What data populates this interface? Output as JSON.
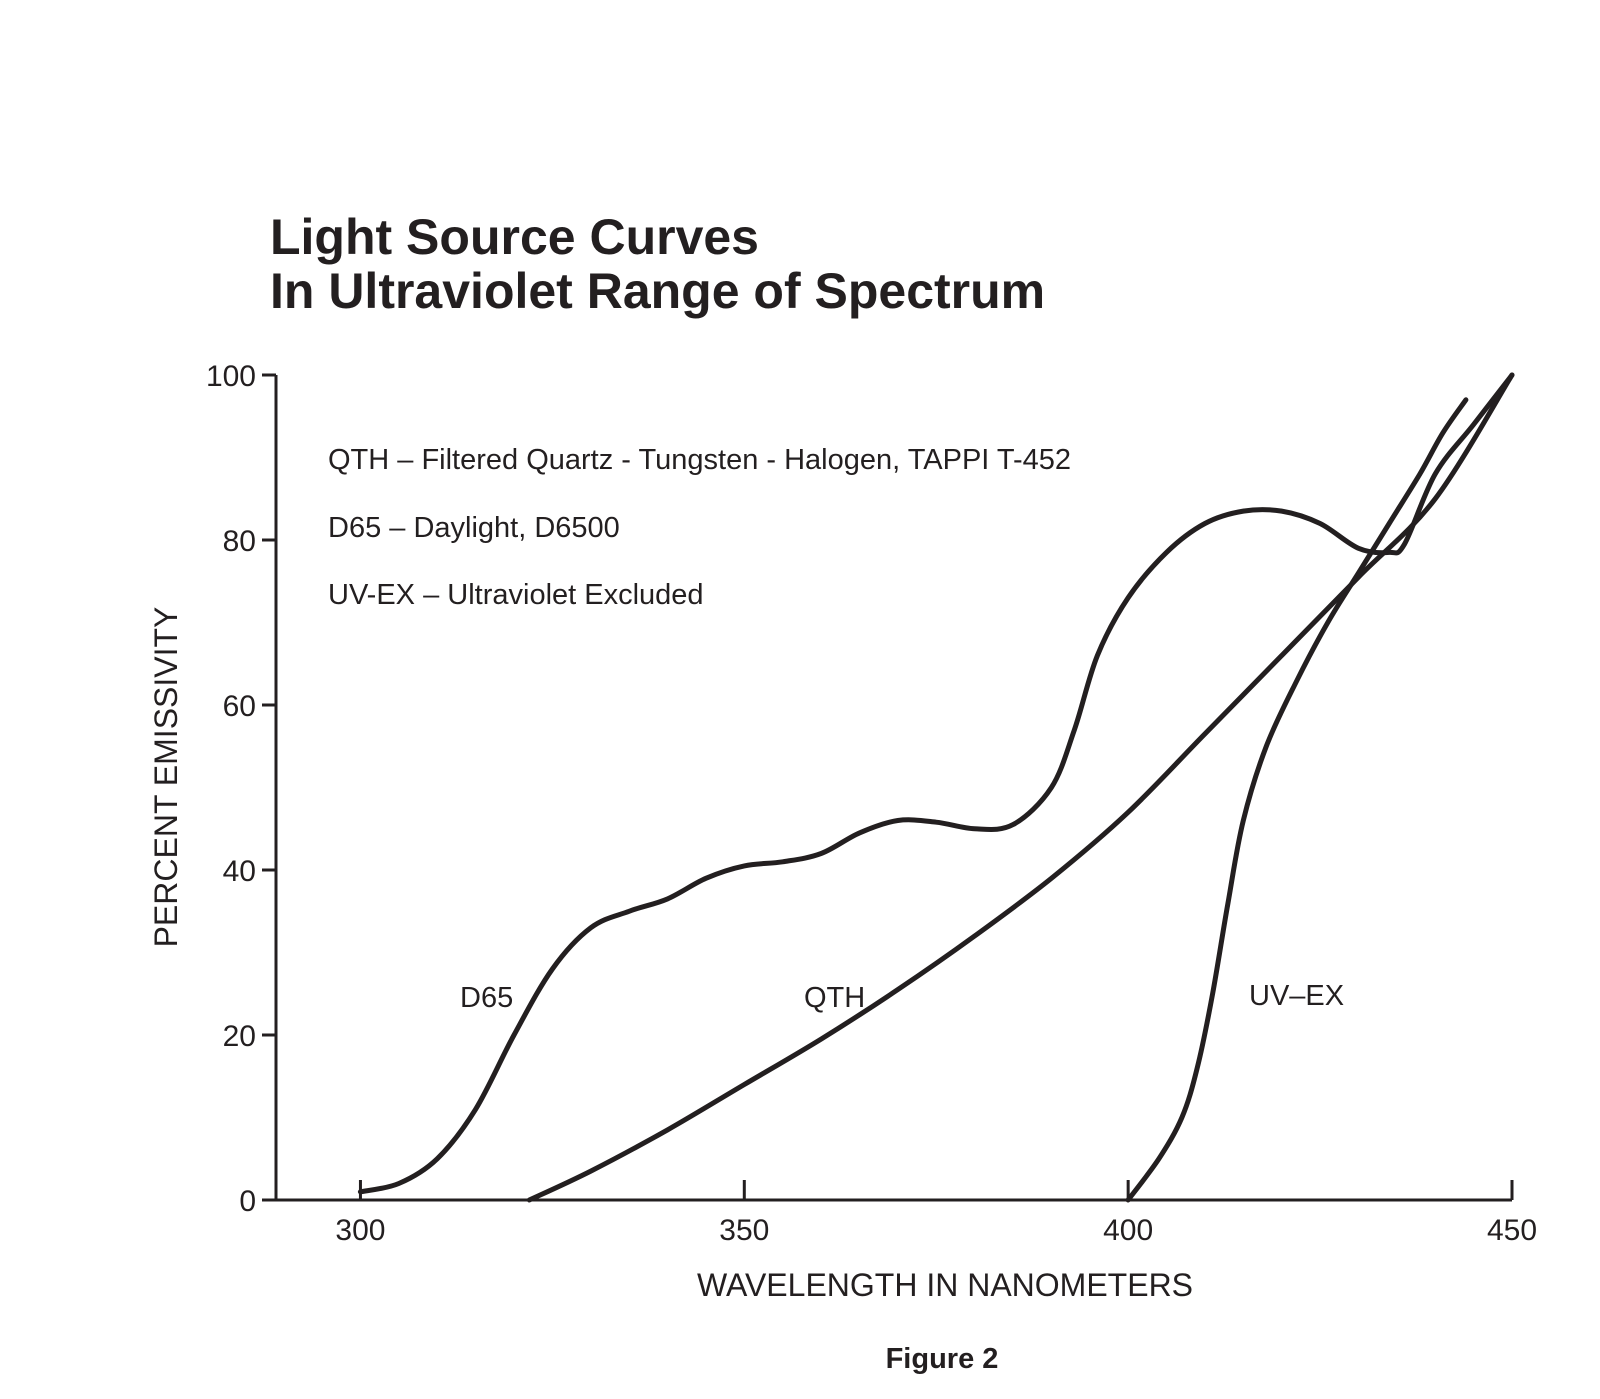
{
  "chart_data": {
    "type": "line",
    "title": "Light Source Curves",
    "subtitle": "In Ultraviolet Range of Spectrum",
    "xlabel": "WAVELENGTH IN NANOMETERS",
    "ylabel": "PERCENT EMISSIVITY",
    "xlim": [
      289,
      450
    ],
    "ylim": [
      0,
      100
    ],
    "x_ticks": [
      300,
      350,
      400,
      450
    ],
    "y_ticks": [
      0,
      20,
      40,
      60,
      80,
      100
    ],
    "grid": false,
    "legend": [
      "QTH – Filtered Quartz - Tungsten - Halogen, TAPPI T-452",
      "D65 – Daylight, D6500",
      "UV-EX – Ultraviolet Excluded"
    ],
    "legend_position": "top-left",
    "series": [
      {
        "name": "D65",
        "label": "D65",
        "x": [
          300,
          305,
          310,
          315,
          320,
          325,
          330,
          335,
          340,
          345,
          350,
          355,
          360,
          365,
          370,
          375,
          380,
          385,
          390,
          393,
          396,
          400,
          405,
          410,
          415,
          420,
          425,
          430,
          434,
          436,
          440,
          445,
          450
        ],
        "y": [
          1,
          2,
          5,
          11,
          20,
          28,
          33,
          35,
          36.5,
          39,
          40.5,
          41,
          42,
          44.5,
          46,
          45.8,
          45,
          45.5,
          50,
          57,
          66,
          73,
          78.5,
          82,
          83.5,
          83.5,
          82,
          79,
          78.5,
          79.5,
          88,
          94,
          100
        ]
      },
      {
        "name": "QTH",
        "label": "QTH",
        "x": [
          322,
          330,
          340,
          350,
          360,
          370,
          380,
          390,
          400,
          410,
          420,
          430,
          440,
          450
        ],
        "y": [
          0,
          3.5,
          8.5,
          14,
          19.5,
          25.5,
          32,
          39,
          47,
          56.5,
          66,
          75.5,
          85,
          100
        ]
      },
      {
        "name": "UV-EX",
        "label": "UV–EX",
        "x": [
          400,
          404,
          407,
          409,
          411,
          413,
          415,
          418,
          422,
          426,
          430,
          434,
          438,
          441,
          444
        ],
        "y": [
          0,
          5,
          10,
          16,
          25,
          36,
          46,
          55,
          63,
          70,
          76,
          82,
          88,
          93,
          97
        ]
      }
    ]
  },
  "figure": {
    "caption": "Figure 2"
  }
}
